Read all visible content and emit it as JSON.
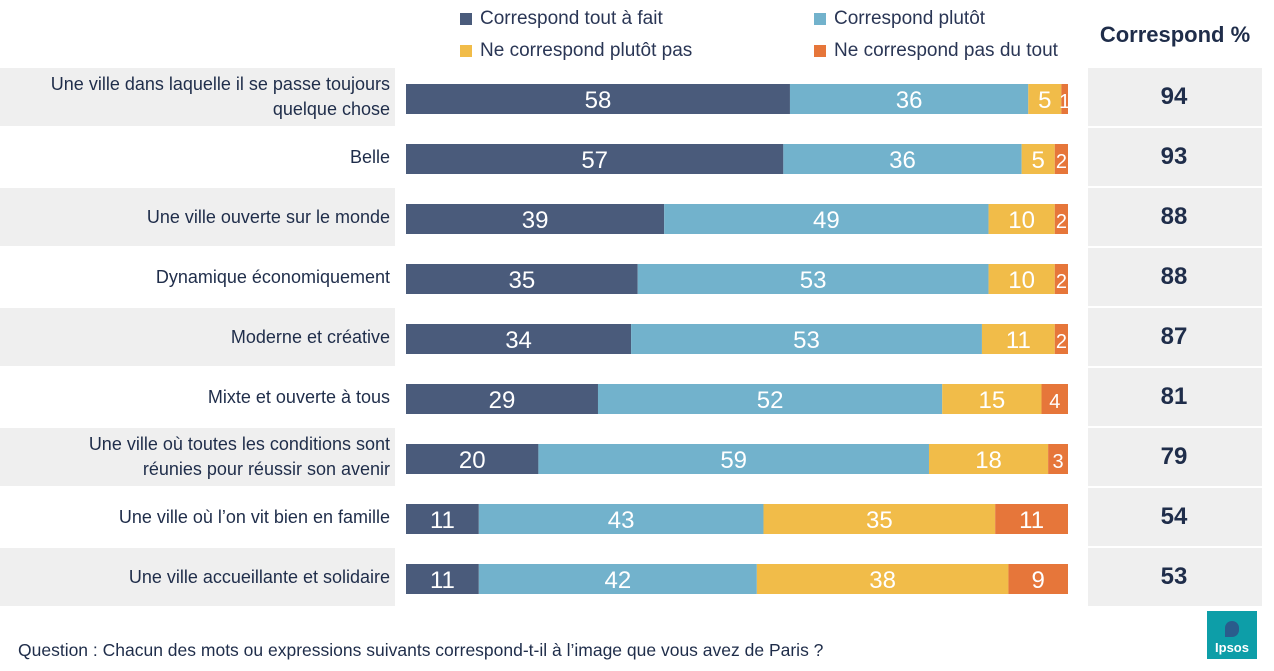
{
  "legend": [
    {
      "label": "Correspond tout à fait",
      "color": "#4a5b7b"
    },
    {
      "label": "Correspond plutôt",
      "color": "#72b2cc"
    },
    {
      "label": "Ne correspond plutôt pas",
      "color": "#f1bc49"
    },
    {
      "label": "Ne correspond pas du tout",
      "color": "#e6763a"
    }
  ],
  "correspond_header": "Correspond %",
  "question": "Question : Chacun des mots ou expressions suivants correspond-t-il à l’image que vous avez de Paris ?",
  "logo_text": "Ipsos",
  "chart_data": {
    "type": "bar",
    "orientation": "horizontal",
    "stacked": true,
    "categories": [
      "Une ville dans laquelle il se passe toujours quelque chose",
      "Belle",
      "Une ville ouverte sur le monde",
      "Dynamique économiquement",
      "Moderne et créative",
      "Mixte et ouverte à tous",
      "Une ville où toutes les conditions sont réunies pour réussir son avenir",
      "Une ville où l’on vit bien en famille",
      "Une ville accueillante et solidaire"
    ],
    "category_lines": [
      [
        "Une ville dans laquelle il se passe toujours",
        "quelque chose"
      ],
      [
        "Belle"
      ],
      [
        "Une ville ouverte sur le monde"
      ],
      [
        "Dynamique économiquement"
      ],
      [
        "Moderne et créative"
      ],
      [
        "Mixte et ouverte à tous"
      ],
      [
        "Une ville où toutes les conditions sont",
        "réunies pour réussir son avenir"
      ],
      [
        "Une ville où l’on vit bien en famille"
      ],
      [
        "Une ville accueillante et solidaire"
      ]
    ],
    "series": [
      {
        "name": "Correspond tout à fait",
        "color": "#4a5b7b",
        "values": [
          58,
          57,
          39,
          35,
          34,
          29,
          20,
          11,
          11
        ]
      },
      {
        "name": "Correspond plutôt",
        "color": "#72b2cc",
        "values": [
          36,
          36,
          49,
          53,
          53,
          52,
          59,
          43,
          42
        ]
      },
      {
        "name": "Ne correspond plutôt pas",
        "color": "#f1bc49",
        "values": [
          5,
          5,
          10,
          10,
          11,
          15,
          18,
          35,
          38
        ]
      },
      {
        "name": "Ne correspond pas du tout",
        "color": "#e6763a",
        "values": [
          1,
          2,
          2,
          2,
          2,
          4,
          3,
          11,
          9
        ]
      }
    ],
    "correspond_pct": [
      94,
      93,
      88,
      88,
      87,
      81,
      79,
      54,
      53
    ],
    "xlim": [
      0,
      100
    ]
  }
}
